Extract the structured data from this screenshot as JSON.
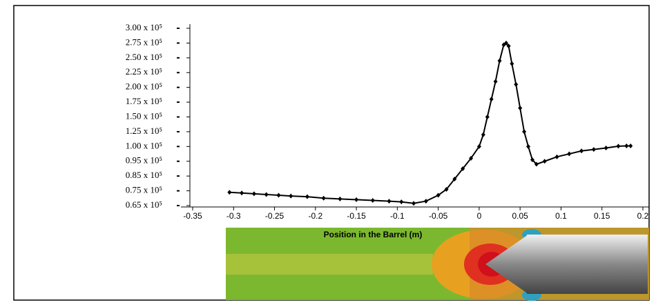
{
  "chart_data": {
    "type": "line",
    "x_label": "Position in the Barrel (m)",
    "xlim": [
      -0.35,
      0.2
    ],
    "xticks": [
      -0.35,
      -0.3,
      -0.25,
      -0.2,
      -0.15,
      -0.1,
      -0.05,
      0,
      0.05,
      0.1,
      0.15,
      0.2
    ],
    "ylim": [
      65000,
      300000
    ],
    "yticks": [
      {
        "value": 65000,
        "label": "0.65 x 10⁵"
      },
      {
        "value": 75000,
        "label": "0.75 x 10⁵"
      },
      {
        "value": 85000,
        "label": "0.85 x 10⁵"
      },
      {
        "value": 95000,
        "label": "0.95 x 10⁵"
      },
      {
        "value": 100000,
        "label": "1.00 x 10⁵"
      },
      {
        "value": 125000,
        "label": "1.25 x 10⁵"
      },
      {
        "value": 150000,
        "label": "1.50 x 10⁵"
      },
      {
        "value": 175000,
        "label": "1.75 x 10⁵"
      },
      {
        "value": 200000,
        "label": "2.00 x 10⁵"
      },
      {
        "value": 225000,
        "label": "2.25 x 10⁵"
      },
      {
        "value": 250000,
        "label": "2.50 x 10⁵"
      },
      {
        "value": 275000,
        "label": "2.75 x 10⁵"
      },
      {
        "value": 300000,
        "label": "3.00 x 10⁵"
      }
    ],
    "x": [
      -0.305,
      -0.29,
      -0.275,
      -0.26,
      -0.245,
      -0.23,
      -0.21,
      -0.19,
      -0.17,
      -0.15,
      -0.13,
      -0.11,
      -0.095,
      -0.08,
      -0.065,
      -0.05,
      -0.04,
      -0.03,
      -0.02,
      -0.01,
      0,
      0.005,
      0.01,
      0.015,
      0.02,
      0.025,
      0.03,
      0.033,
      0.036,
      0.04,
      0.045,
      0.05,
      0.055,
      0.06,
      0.065,
      0.07,
      0.08,
      0.095,
      0.11,
      0.125,
      0.14,
      0.155,
      0.17,
      0.18,
      0.185
    ],
    "series": [
      {
        "color": "#000000",
        "values": [
          74000,
          73500,
          73000,
          72500,
          72000,
          71500,
          71000,
          70000,
          69500,
          69000,
          68500,
          68000,
          67500,
          66500,
          68000,
          72000,
          76000,
          83000,
          90000,
          96000,
          100000,
          120000,
          150000,
          180000,
          210000,
          245000,
          272000,
          275000,
          270000,
          240000,
          205000,
          165000,
          125000,
          100000,
          95500,
          93000,
          95000,
          96500,
          97500,
          98500,
          99000,
          99500,
          100500,
          101000,
          101000
        ]
      }
    ]
  }
}
